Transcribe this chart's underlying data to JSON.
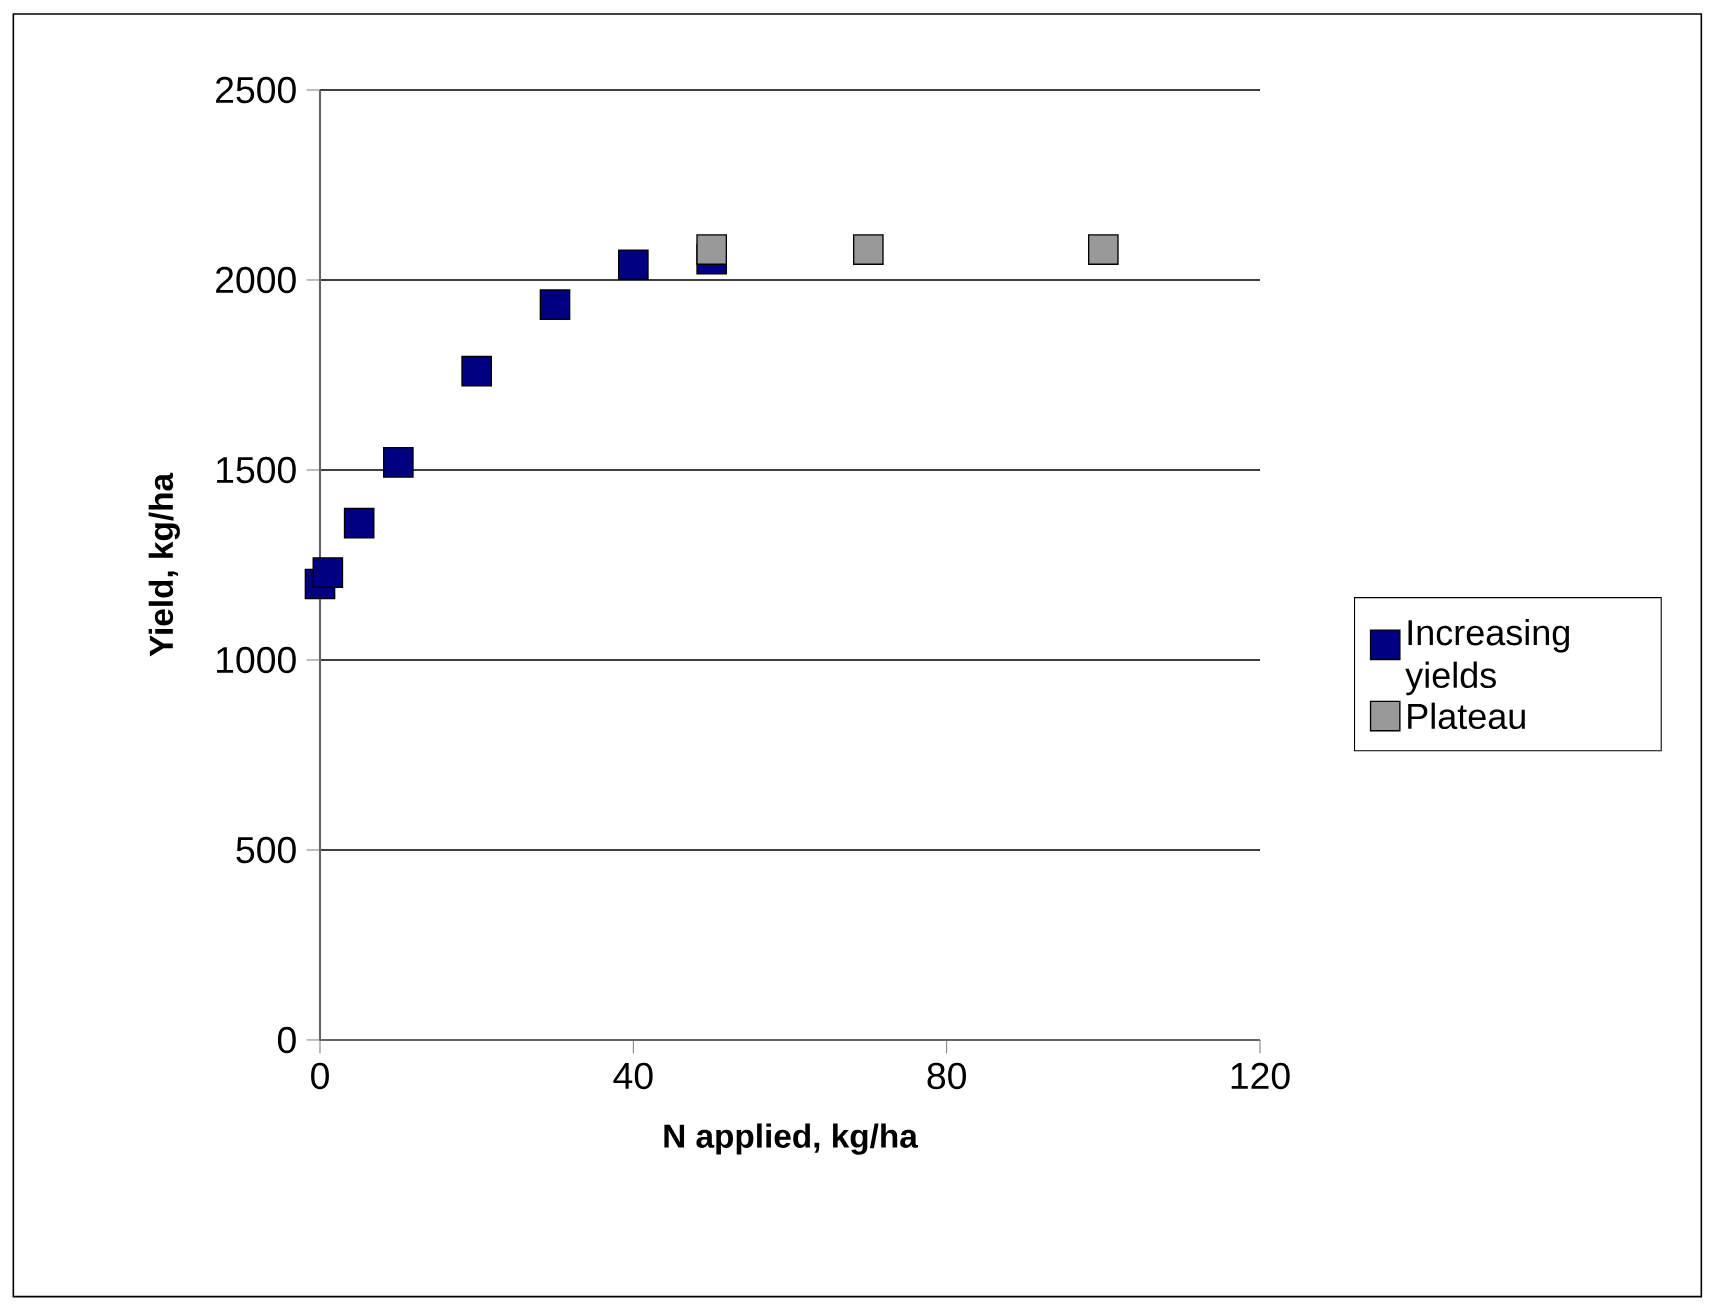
{
  "chart_data": {
    "type": "scatter",
    "xlabel": "N applied, kg/ha",
    "ylabel": "Yield, kg/ha",
    "xlim": [
      0,
      120
    ],
    "ylim": [
      0,
      2500
    ],
    "xticks": [
      0,
      40,
      80,
      120
    ],
    "yticks": [
      0,
      500,
      1000,
      1500,
      2000,
      2500
    ],
    "grid": "y",
    "legend": "right",
    "marker": "square",
    "series": [
      {
        "name": "Increasing yields",
        "color": "#000080",
        "x": [
          0,
          1,
          5,
          10,
          20,
          30,
          40,
          50
        ],
        "values": [
          1200,
          1230,
          1360,
          1520,
          1760,
          1935,
          2040,
          2055
        ]
      },
      {
        "name": "Plateau",
        "color": "#999999",
        "x": [
          50,
          70,
          100
        ],
        "values": [
          2080,
          2080,
          2080
        ]
      }
    ]
  }
}
